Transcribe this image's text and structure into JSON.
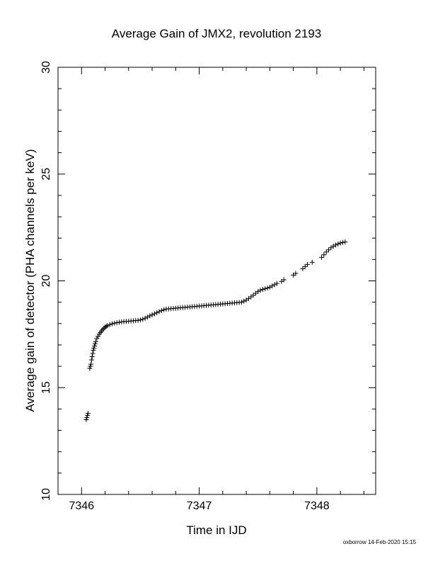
{
  "chart_data": {
    "type": "scatter",
    "title": "Average Gain of JMX2, revolution 2193",
    "xlabel": "Time in IJD",
    "ylabel": "Average gain of detector (PHA channels per keV)",
    "xlim": [
      7345.8,
      7348.5
    ],
    "ylim": [
      10,
      30
    ],
    "xticks": [
      7346,
      7347,
      7348
    ],
    "yticks": [
      10,
      15,
      20,
      25,
      30
    ],
    "marker": "plus",
    "grid": false,
    "legend": "none",
    "credit": "oxborrow 14-Feb-2020 15:15",
    "points": [
      [
        7346.04,
        13.5
      ],
      [
        7346.045,
        13.6
      ],
      [
        7346.05,
        13.7
      ],
      [
        7346.055,
        13.8
      ],
      [
        7346.07,
        15.9
      ],
      [
        7346.075,
        16.0
      ],
      [
        7346.08,
        16.1
      ],
      [
        7346.085,
        16.3
      ],
      [
        7346.09,
        16.45
      ],
      [
        7346.095,
        16.6
      ],
      [
        7346.1,
        16.75
      ],
      [
        7346.105,
        16.85
      ],
      [
        7346.11,
        16.95
      ],
      [
        7346.115,
        17.05
      ],
      [
        7346.12,
        17.15
      ],
      [
        7346.13,
        17.3
      ],
      [
        7346.14,
        17.4
      ],
      [
        7346.15,
        17.5
      ],
      [
        7346.16,
        17.58
      ],
      [
        7346.17,
        17.65
      ],
      [
        7346.18,
        17.72
      ],
      [
        7346.19,
        17.78
      ],
      [
        7346.2,
        17.83
      ],
      [
        7346.21,
        17.87
      ],
      [
        7346.22,
        17.9
      ],
      [
        7346.24,
        17.95
      ],
      [
        7346.26,
        17.99
      ],
      [
        7346.28,
        18.02
      ],
      [
        7346.3,
        18.04
      ],
      [
        7346.32,
        18.06
      ],
      [
        7346.34,
        18.08
      ],
      [
        7346.36,
        18.09
      ],
      [
        7346.38,
        18.1
      ],
      [
        7346.4,
        18.11
      ],
      [
        7346.42,
        18.12
      ],
      [
        7346.44,
        18.13
      ],
      [
        7346.46,
        18.14
      ],
      [
        7346.48,
        18.15
      ],
      [
        7346.5,
        18.17
      ],
      [
        7346.52,
        18.2
      ],
      [
        7346.54,
        18.25
      ],
      [
        7346.56,
        18.3
      ],
      [
        7346.58,
        18.36
      ],
      [
        7346.6,
        18.41
      ],
      [
        7346.62,
        18.46
      ],
      [
        7346.64,
        18.51
      ],
      [
        7346.66,
        18.56
      ],
      [
        7346.68,
        18.61
      ],
      [
        7346.7,
        18.65
      ],
      [
        7346.72,
        18.68
      ],
      [
        7346.74,
        18.69
      ],
      [
        7346.76,
        18.7
      ],
      [
        7346.78,
        18.71
      ],
      [
        7346.8,
        18.72
      ],
      [
        7346.82,
        18.73
      ],
      [
        7346.84,
        18.74
      ],
      [
        7346.86,
        18.75
      ],
      [
        7346.88,
        18.76
      ],
      [
        7346.9,
        18.77
      ],
      [
        7346.92,
        18.78
      ],
      [
        7346.94,
        18.79
      ],
      [
        7346.96,
        18.8
      ],
      [
        7346.98,
        18.81
      ],
      [
        7347.0,
        18.82
      ],
      [
        7347.02,
        18.83
      ],
      [
        7347.04,
        18.84
      ],
      [
        7347.06,
        18.85
      ],
      [
        7347.08,
        18.86
      ],
      [
        7347.1,
        18.87
      ],
      [
        7347.12,
        18.88
      ],
      [
        7347.14,
        18.89
      ],
      [
        7347.16,
        18.9
      ],
      [
        7347.18,
        18.91
      ],
      [
        7347.2,
        18.92
      ],
      [
        7347.22,
        18.93
      ],
      [
        7347.24,
        18.94
      ],
      [
        7347.26,
        18.95
      ],
      [
        7347.28,
        18.96
      ],
      [
        7347.3,
        18.97
      ],
      [
        7347.32,
        18.98
      ],
      [
        7347.34,
        18.99
      ],
      [
        7347.36,
        19.0
      ],
      [
        7347.38,
        19.05
      ],
      [
        7347.4,
        19.1
      ],
      [
        7347.42,
        19.17
      ],
      [
        7347.44,
        19.25
      ],
      [
        7347.46,
        19.33
      ],
      [
        7347.48,
        19.42
      ],
      [
        7347.5,
        19.5
      ],
      [
        7347.52,
        19.56
      ],
      [
        7347.54,
        19.6
      ],
      [
        7347.56,
        19.63
      ],
      [
        7347.58,
        19.66
      ],
      [
        7347.6,
        19.7
      ],
      [
        7347.62,
        19.76
      ],
      [
        7347.64,
        19.82
      ],
      [
        7347.66,
        19.88
      ],
      [
        7347.7,
        19.97
      ],
      [
        7347.72,
        20.05
      ],
      [
        7347.8,
        20.27
      ],
      [
        7347.82,
        20.35
      ],
      [
        7347.88,
        20.57
      ],
      [
        7347.9,
        20.67
      ],
      [
        7347.92,
        20.77
      ],
      [
        7347.96,
        20.87
      ],
      [
        7348.04,
        21.1
      ],
      [
        7348.06,
        21.22
      ],
      [
        7348.08,
        21.35
      ],
      [
        7348.1,
        21.45
      ],
      [
        7348.12,
        21.55
      ],
      [
        7348.14,
        21.62
      ],
      [
        7348.16,
        21.68
      ],
      [
        7348.18,
        21.73
      ],
      [
        7348.2,
        21.77
      ],
      [
        7348.22,
        21.8
      ],
      [
        7348.24,
        21.82
      ]
    ]
  }
}
